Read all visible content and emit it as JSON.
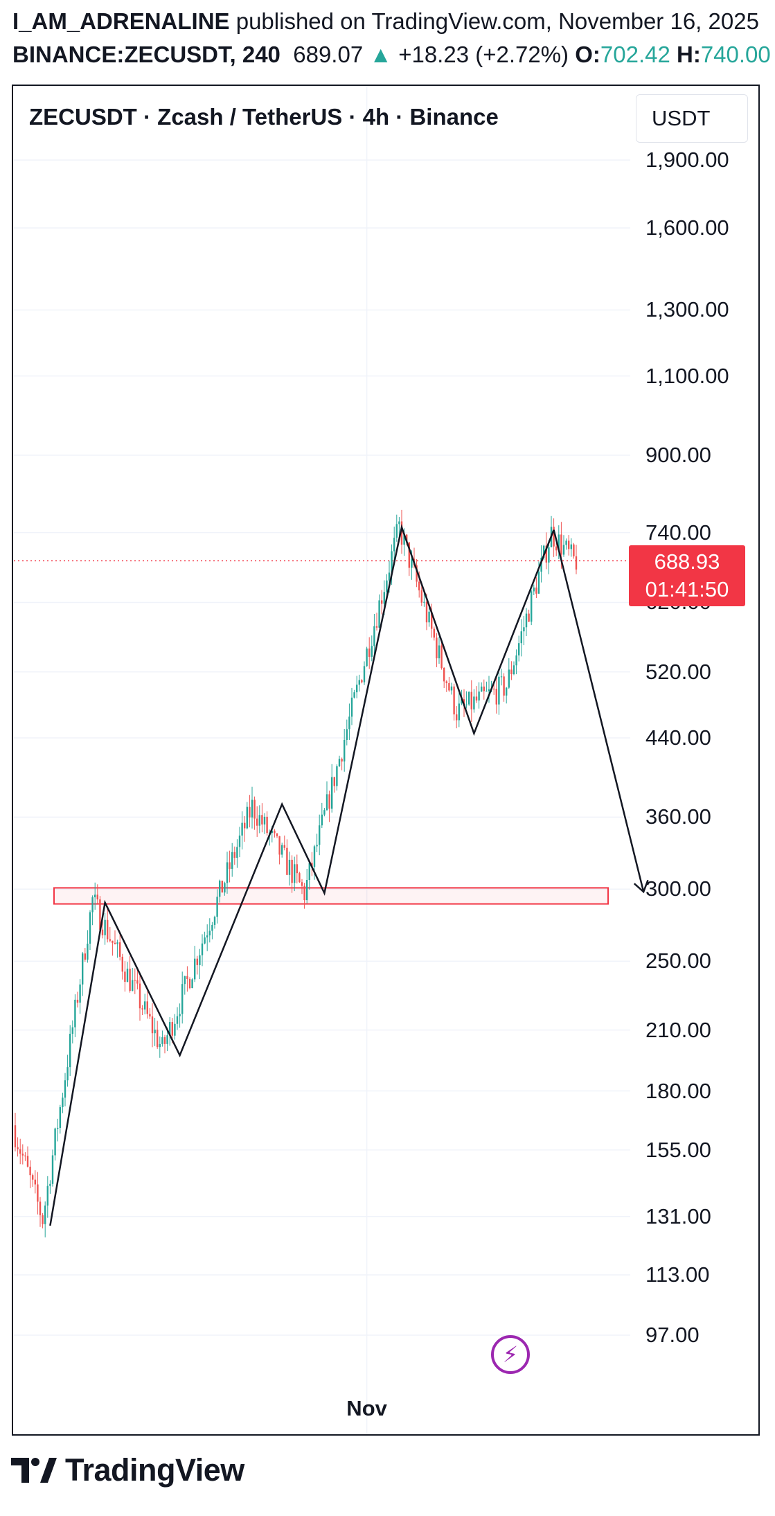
{
  "header": {
    "author": "I_AM_ADRENALINE",
    "published_text": "published on TradingView.com, November 16, 2025",
    "symbol": "BINANCE:ZECUSDT, 240",
    "last": "689.07",
    "change_arrow": "▲",
    "change": "+18.23 (+2.72%)",
    "open_label": "O:",
    "open_value": "702.42",
    "high_label": "H:",
    "high_value": "740.00"
  },
  "chart_title": "ZECUSDT · Zcash / TetherUS · 4h · Binance",
  "currency_button": "USDT",
  "price_badge": {
    "price": "688.93",
    "countdown": "01:41:50"
  },
  "logo_text": "TradingView",
  "icons": {
    "bolt": "lightning-bolt-icon",
    "logo": "tradingview-logo-icon"
  },
  "colors": {
    "up": "#26a69a",
    "down": "#ef5350",
    "accent_red": "#f23645",
    "bolt": "#9c27b0"
  },
  "chart_data": {
    "type": "candlestick",
    "y_scale": "log",
    "yticks": [
      "1,900.00",
      "1,600.00",
      "1,300.00",
      "1,100.00",
      "900.00",
      "740.00",
      "620.00",
      "520.00",
      "440.00",
      "360.00",
      "300.00",
      "250.00",
      "210.00",
      "180.00",
      "155.00",
      "131.00",
      "113.00",
      "97.00"
    ],
    "ytick_values": [
      1900,
      1600,
      1300,
      1100,
      900,
      740,
      620,
      520,
      440,
      360,
      300,
      250,
      210,
      180,
      155,
      131,
      113,
      97
    ],
    "ylim": [
      84,
      2050
    ],
    "xticks": [
      {
        "label": "Nov",
        "bar_index": 141
      }
    ],
    "current_price": 688.93,
    "support_zone": [
      289,
      301
    ],
    "key_points": [
      {
        "bar": 12,
        "price": 130
      },
      {
        "bar": 32,
        "price": 292
      },
      {
        "bar": 60,
        "price": 200
      },
      {
        "bar": 96,
        "price": 370
      },
      {
        "bar": 117,
        "price": 297
      },
      {
        "bar": 155,
        "price": 750
      },
      {
        "bar": 178,
        "price": 470
      },
      {
        "bar": 198,
        "price": 502
      },
      {
        "bar": 216,
        "price": 740
      },
      {
        "bar": 225,
        "price": 689
      }
    ],
    "projection": [
      {
        "bar": 216,
        "price": 745
      },
      {
        "bar": 184,
        "price": 445
      },
      {
        "bar": 155,
        "price": 750
      },
      {
        "bar": 124,
        "price": 297
      },
      {
        "bar": 107,
        "price": 372
      },
      {
        "bar": 66,
        "price": 197
      },
      {
        "bar": 36,
        "price": 290
      },
      {
        "bar": 14,
        "price": 128
      }
    ],
    "projection_end": {
      "bar": 252,
      "price": 298
    },
    "candles": {
      "count": 226,
      "start_price": 165,
      "last_price": 689
    }
  }
}
